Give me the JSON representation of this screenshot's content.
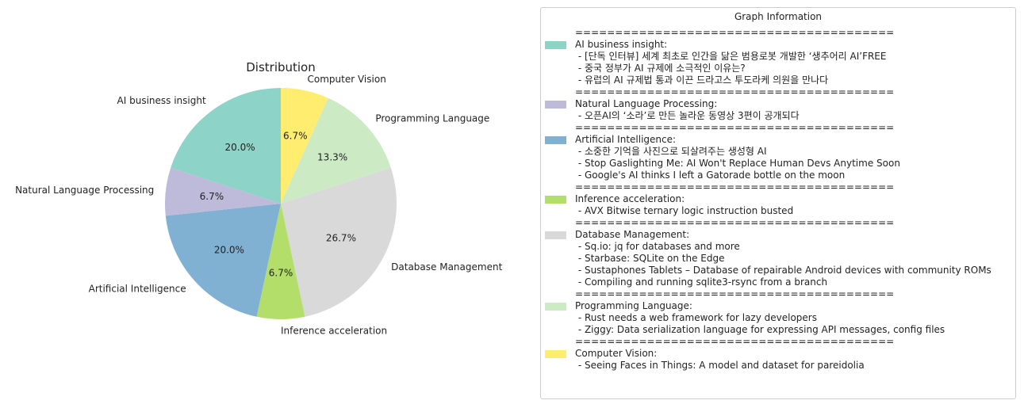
{
  "chart_data": {
    "type": "pie",
    "title": "Distribution",
    "start_angle_deg": 90,
    "direction": "clockwise",
    "slices": [
      {
        "label": "Computer Vision",
        "value": 6.7,
        "pct_label": "6.7%",
        "color": "#ffed6f"
      },
      {
        "label": "Programming Language",
        "value": 13.3,
        "pct_label": "13.3%",
        "color": "#ccebc5"
      },
      {
        "label": "Database Management",
        "value": 26.7,
        "pct_label": "26.7%",
        "color": "#d9d9d9"
      },
      {
        "label": "Inference acceleration",
        "value": 6.7,
        "pct_label": "6.7%",
        "color": "#b3de69"
      },
      {
        "label": "Artificial Intelligence",
        "value": 20.0,
        "pct_label": "20.0%",
        "color": "#80b1d3"
      },
      {
        "label": "Natural Language Processing",
        "value": 6.7,
        "pct_label": "6.7%",
        "color": "#bebada"
      },
      {
        "label": "AI business insight",
        "value": 20.0,
        "pct_label": "20.0%",
        "color": "#8dd3c7"
      }
    ]
  },
  "legend": {
    "title": "Graph Information",
    "separator": "========================================",
    "entries": [
      {
        "category": "AI business insight:",
        "color": "#8dd3c7",
        "items": [
          " - [단독 인터뷰] 세계 최초로 인간을 닮은 범용로봇 개발한 ‘생추어리 AI’FREE",
          " - 중국 정부가 AI 규제에 소극적인 이유는?",
          " - 유럽의 AI 규제법 통과 이끈 드라고스 투도라케 의원을 만나다"
        ]
      },
      {
        "category": "Natural Language Processing:",
        "color": "#bebada",
        "items": [
          " - 오픈AI의 ‘소라’로 만든 놀라운 동영상 3편이 공개되다"
        ]
      },
      {
        "category": "Artificial Intelligence:",
        "color": "#80b1d3",
        "items": [
          " - 소중한 기억을 사진으로 되살려주는 생성형 AI",
          " - Stop Gaslighting Me: AI Won't Replace Human Devs Anytime Soon",
          " - Google's AI thinks I left a Gatorade bottle on the moon"
        ]
      },
      {
        "category": "Inference acceleration:",
        "color": "#b3de69",
        "items": [
          " - AVX Bitwise ternary logic instruction busted"
        ]
      },
      {
        "category": "Database Management:",
        "color": "#d9d9d9",
        "items": [
          " - Sq.io: jq for databases and more",
          " - Starbase: SQLite on the Edge",
          " - Sustaphones Tablets – Database of repairable Android devices with community ROMs",
          " - Compiling and running sqlite3-rsync from a branch"
        ]
      },
      {
        "category": "Programming Language:",
        "color": "#ccebc5",
        "items": [
          " - Rust needs a web framework for lazy developers",
          " - Ziggy: Data serialization language for expressing API messages, config files"
        ]
      },
      {
        "category": "Computer Vision:",
        "color": "#ffed6f",
        "items": [
          " - Seeing Faces in Things: A model and dataset for pareidolia"
        ]
      }
    ]
  }
}
